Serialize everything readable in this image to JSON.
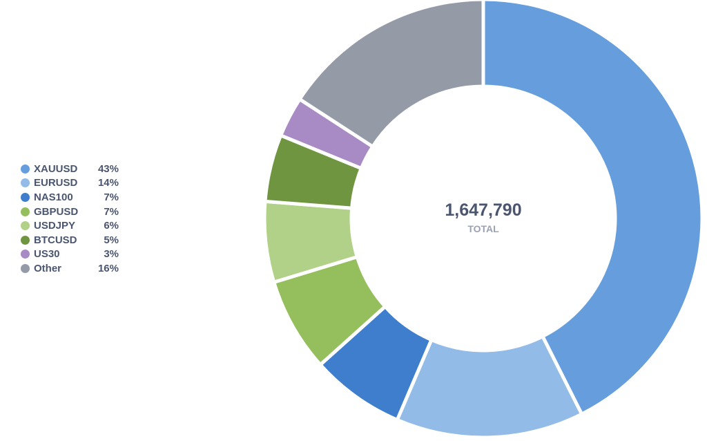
{
  "chart_data": {
    "type": "pie",
    "variant": "donut",
    "title": "",
    "center_value": "1,647,790",
    "center_label": "TOTAL",
    "legend_position": "left",
    "slices": [
      {
        "label": "XAUUSD",
        "value": 43,
        "display": "43%",
        "color": "#659ddd"
      },
      {
        "label": "EURUSD",
        "value": 14,
        "display": "14%",
        "color": "#93bbe7"
      },
      {
        "label": "NAS100",
        "value": 7,
        "display": "7%",
        "color": "#3f7dcd"
      },
      {
        "label": "GBPUSD",
        "value": 7,
        "display": "7%",
        "color": "#94bf5c"
      },
      {
        "label": "USDJPY",
        "value": 6,
        "display": "6%",
        "color": "#b0d187"
      },
      {
        "label": "BTCUSD",
        "value": 5,
        "display": "5%",
        "color": "#6f9540"
      },
      {
        "label": "US30",
        "value": 3,
        "display": "3%",
        "color": "#a88ac4"
      },
      {
        "label": "Other",
        "value": 16,
        "display": "16%",
        "color": "#959aa7"
      }
    ]
  }
}
